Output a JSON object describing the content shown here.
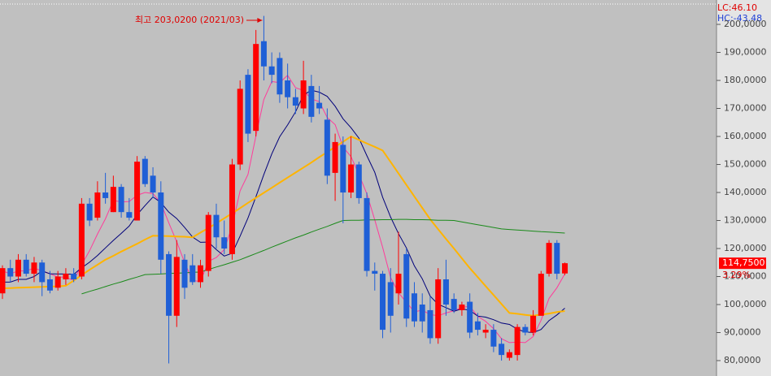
{
  "chart_data": {
    "type": "candlestick",
    "annotation": "최고 203,0200 (2021/03)",
    "lc_label": "LC:46.10",
    "hc_label": "HC:-43.48",
    "last_price_label": "114,7500",
    "change_label": "3.29%",
    "up_color": "#ff0000",
    "down_color": "#1f5fd6",
    "ylim": [
      74.5,
      208.7
    ],
    "yticks": [
      {
        "value": 80,
        "label": "80,0000"
      },
      {
        "value": 90,
        "label": "90,0000"
      },
      {
        "value": 100,
        "label": "100,0000"
      },
      {
        "value": 110,
        "label": "110,0000"
      },
      {
        "value": 120,
        "label": "120,0000"
      },
      {
        "value": 130,
        "label": "130,0000"
      },
      {
        "value": 140,
        "label": "140,0000"
      },
      {
        "value": 150,
        "label": "150,0000"
      },
      {
        "value": 160,
        "label": "160,0000"
      },
      {
        "value": 170,
        "label": "170,0000"
      },
      {
        "value": 180,
        "label": "180,0000"
      },
      {
        "value": 190,
        "label": "190,0000"
      },
      {
        "value": 200,
        "label": "200,0000"
      }
    ],
    "open": [
      104,
      113,
      110,
      116,
      111,
      115,
      109,
      106,
      109,
      111,
      110,
      136,
      131,
      140,
      133,
      142,
      133,
      130,
      152,
      146,
      140,
      118,
      96,
      116,
      114,
      108,
      112,
      132,
      124,
      118,
      150,
      182,
      162,
      194,
      185,
      188,
      180,
      174,
      170,
      178,
      172,
      166,
      147,
      157,
      140,
      150,
      138,
      112,
      111,
      108,
      104,
      118,
      104,
      100,
      98,
      88,
      109,
      102,
      98,
      101,
      94,
      90,
      91,
      86,
      81,
      82,
      92,
      90,
      96,
      111,
      122,
      111.1
    ],
    "high": [
      114,
      116,
      118,
      118,
      117,
      116,
      112,
      112,
      113,
      113,
      138,
      138,
      144,
      147,
      146,
      143,
      138,
      153,
      153,
      149,
      144,
      119,
      123,
      118,
      118,
      116,
      133,
      136,
      130,
      152,
      180,
      184,
      198,
      203.02,
      190,
      190,
      186,
      177,
      187,
      182,
      178,
      170,
      161,
      160,
      160,
      151,
      140,
      115,
      112,
      113,
      126,
      120,
      108,
      104,
      103,
      113,
      116,
      104,
      101,
      104,
      97,
      93,
      93,
      88,
      84,
      93,
      93,
      98,
      112,
      123,
      123,
      115
    ],
    "low": [
      102,
      108,
      108,
      110,
      108,
      103,
      104,
      105,
      107,
      108,
      109,
      128,
      130,
      136,
      133,
      131,
      130,
      130,
      142,
      138,
      111,
      79,
      92,
      102,
      107,
      106,
      110,
      120,
      118,
      116,
      148,
      158,
      160,
      180,
      179,
      172,
      170,
      168,
      168,
      165,
      168,
      143,
      137,
      129,
      138,
      136,
      110,
      105,
      88,
      90,
      100,
      92,
      92,
      90,
      86,
      86,
      96,
      97,
      96,
      88,
      89,
      88,
      83,
      80,
      80,
      80,
      89,
      89,
      96,
      110,
      109,
      110.5
    ],
    "close": [
      113,
      110,
      116,
      111,
      115,
      108,
      105,
      110,
      111,
      109,
      136,
      130,
      140,
      138,
      142,
      133,
      131,
      151,
      143,
      140,
      116,
      96,
      117,
      106,
      108,
      114,
      132,
      124,
      120,
      150,
      177,
      161,
      193,
      185,
      182,
      175,
      174,
      171,
      180,
      167,
      170,
      146,
      158,
      140,
      150,
      138,
      112,
      111,
      91,
      96,
      111,
      95,
      94,
      94,
      88,
      109,
      100,
      98,
      100,
      90,
      91,
      91,
      85,
      82,
      83,
      92,
      90,
      96,
      111,
      122,
      111,
      114.75
    ],
    "series": [
      {
        "color": "#ff3c9a",
        "values": [
          112,
          111,
          112,
          112,
          113,
          112,
          111,
          109.8,
          109.8,
          108.6,
          114.2,
          119.2,
          125.2,
          130.6,
          137.2,
          136.6,
          136.8,
          139,
          140,
          139.6,
          136.2,
          129.2,
          122.4,
          115,
          108.6,
          108.2,
          115.4,
          116.8,
          119.6,
          128,
          140.6,
          146.4,
          160.2,
          173.2,
          179.6,
          179.2,
          181.8,
          177.4,
          176.4,
          173.4,
          172.4,
          166.8,
          164.2,
          156.2,
          152.8,
          146.4,
          139.6,
          130.2,
          120.4,
          109.6,
          104.2,
          100.8,
          97.4,
          98,
          96.4,
          96,
          97,
          97.8,
          99,
          99.4,
          95.8,
          94,
          91.4,
          87.8,
          86.4,
          86.6,
          86.4,
          88.6,
          94.4,
          102.2,
          106,
          110.95
        ]
      },
      {
        "color": "#00007a",
        "values": [
          108,
          108,
          109,
          109,
          110,
          112,
          111,
          110.9,
          110.9,
          110.8,
          113.1,
          115.1,
          117.5,
          120.2,
          122.9,
          125.4,
          128,
          132.1,
          135.3,
          138.4,
          136.4,
          133,
          130.7,
          127.5,
          124.1,
          122.2,
          122.3,
          119.6,
          117.3,
          118.3,
          124.4,
          130.9,
          138.5,
          146.4,
          153.8,
          159.9,
          164.1,
          168.8,
          174.8,
          176.5,
          175.8,
          174.3,
          170.8,
          166.3,
          163.1,
          159.4,
          153.2,
          147.2,
          138.3,
          131.2,
          125.3,
          120.2,
          113.8,
          109.2,
          103,
          100.1,
          98.9,
          97.6,
          98.5,
          97.9,
          95.9,
          95.5,
          94.6,
          93.4,
          92.9,
          91.2,
          90.2,
          90,
          91.1,
          94.3,
          96.3,
          98.7
        ]
      },
      {
        "color": "#ffb400",
        "values": [
          105.8,
          105.9,
          106,
          106.1,
          106.2,
          106.3,
          106.4,
          106.5,
          106.7,
          108.6,
          110.5,
          112.4,
          114.2,
          116,
          117.4,
          118.9,
          120.3,
          121.7,
          123.2,
          124.6,
          124.5,
          124.4,
          124.3,
          124.2,
          124,
          125.7,
          127.3,
          129,
          130.8,
          132.6,
          134.4,
          136.3,
          138.1,
          139.9,
          141.7,
          143.5,
          145.3,
          147.1,
          148.9,
          150.7,
          152.6,
          154.4,
          156.3,
          158.1,
          160,
          158.8,
          157.5,
          156.3,
          155,
          150.9,
          146.8,
          142.7,
          138.6,
          134.5,
          130.4,
          126.9,
          123.4,
          120,
          116.5,
          113,
          109.8,
          106.6,
          103.4,
          100.2,
          97,
          96.7,
          96.3,
          96,
          96.4,
          96.8,
          97.3,
          97.7
        ]
      },
      {
        "color": "#1a8a1a",
        "values": [
          null,
          null,
          null,
          null,
          null,
          null,
          null,
          null,
          null,
          null,
          103.8,
          104.7,
          105.5,
          106.4,
          107.3,
          108.1,
          109,
          109.8,
          110.7,
          110.8,
          110.9,
          111.1,
          111.2,
          111.3,
          111.5,
          111.6,
          112.5,
          113.4,
          114.2,
          115.1,
          116,
          117.1,
          118.2,
          119.3,
          120.5,
          121.6,
          122.7,
          123.8,
          124.8,
          125.9,
          126.9,
          127.9,
          129,
          130,
          130.1,
          130.1,
          130.2,
          130.2,
          130.3,
          130.3,
          130.4,
          130.4,
          130.3,
          130.3,
          130.2,
          130.1,
          130.1,
          130,
          129.5,
          129,
          128.5,
          128,
          127.5,
          127,
          126.8,
          126.6,
          126.4,
          126.2,
          126,
          125.9,
          125.7,
          125.5
        ]
      }
    ]
  }
}
